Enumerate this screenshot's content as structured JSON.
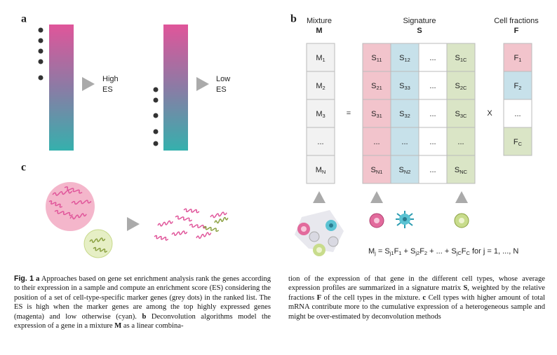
{
  "panel_a": {
    "label": "a",
    "high": [
      "High",
      "ES"
    ],
    "low": [
      "Low",
      "ES"
    ]
  },
  "panel_b": {
    "label": "b",
    "mixture": {
      "title": "Mixture",
      "symbol": "M",
      "cells": [
        {
          "t": "M",
          "sub": "1"
        },
        {
          "t": "M",
          "sub": "2"
        },
        {
          "t": "M",
          "sub": "3"
        },
        {
          "t": "..."
        },
        {
          "t": "M",
          "sub": "N"
        }
      ]
    },
    "equals": "=",
    "signature": {
      "title": "Signature",
      "symbol": "S",
      "rows": [
        [
          {
            "t": "S",
            "sub": "11"
          },
          {
            "t": "S",
            "sub": "12"
          },
          {
            "t": "..."
          },
          {
            "t": "S",
            "sub": "1C"
          }
        ],
        [
          {
            "t": "S",
            "sub": "21"
          },
          {
            "t": "S",
            "sub": "33"
          },
          {
            "t": "..."
          },
          {
            "t": "S",
            "sub": "2C"
          }
        ],
        [
          {
            "t": "S",
            "sub": "31"
          },
          {
            "t": "S",
            "sub": "32"
          },
          {
            "t": "..."
          },
          {
            "t": "S",
            "sub": "3C"
          }
        ],
        [
          {
            "t": "..."
          },
          {
            "t": "..."
          },
          {
            "t": "..."
          },
          {
            "t": "..."
          }
        ],
        [
          {
            "t": "S",
            "sub": "N1"
          },
          {
            "t": "S",
            "sub": "N2"
          },
          {
            "t": "..."
          },
          {
            "t": "S",
            "sub": "NC"
          }
        ]
      ]
    },
    "times": "X",
    "fractions": {
      "title": "Cell fractions",
      "symbol": "F",
      "cells": [
        {
          "t": "F",
          "sub": "1"
        },
        {
          "t": "F",
          "sub": "2"
        },
        {
          "t": "..."
        },
        {
          "t": "F",
          "sub": "C"
        }
      ]
    },
    "equation": [
      {
        "t": "M",
        "sub": "j"
      },
      {
        "t": " = S"
      },
      {
        "t": "",
        "sub": "j1"
      },
      {
        "t": "F",
        "sub": "1"
      },
      {
        "t": " + S"
      },
      {
        "t": "",
        "sub": "j2"
      },
      {
        "t": "F",
        "sub": "2"
      },
      {
        "t": " + ... + S"
      },
      {
        "t": "",
        "sub": "jC"
      },
      {
        "t": "F",
        "sub": "C"
      },
      {
        "t": "  for  j = 1, ..., N"
      }
    ]
  },
  "panel_c": {
    "label": "c"
  },
  "caption": {
    "left": [
      {
        "text": "Fig. 1",
        "bold": true
      },
      {
        "text": "  "
      },
      {
        "text": "a",
        "bold": true
      },
      {
        "text": " Approaches based on gene set enrichment analysis rank the genes according to their expression in a sample and compute an enrichment score (ES) considering the position of a set of cell-type-specific marker genes (grey dots) in the ranked list. The ES is high when the marker genes are among the top highly expressed genes (magenta) and low otherwise (cyan). "
      },
      {
        "text": "b",
        "bold": true
      },
      {
        "text": " Deconvolution algorithms model the expression of a gene in a mixture "
      },
      {
        "text": "M",
        "bold": true
      },
      {
        "text": " as a linear combina-"
      }
    ],
    "right": [
      {
        "text": "tion of the expression of that gene in the different cell types, whose average expression profiles are summarized in a signature matrix "
      },
      {
        "text": "S",
        "bold": true
      },
      {
        "text": ", weighted by the relative fractions "
      },
      {
        "text": "F",
        "bold": true
      },
      {
        "text": " of the cell types in the mixture. "
      },
      {
        "text": "c",
        "bold": true
      },
      {
        "text": " Cell types with higher amount of total mRNA contribute more to the cumulative expression of a heterogeneous sample and might be over-estimated by deconvolution methods"
      }
    ]
  }
}
